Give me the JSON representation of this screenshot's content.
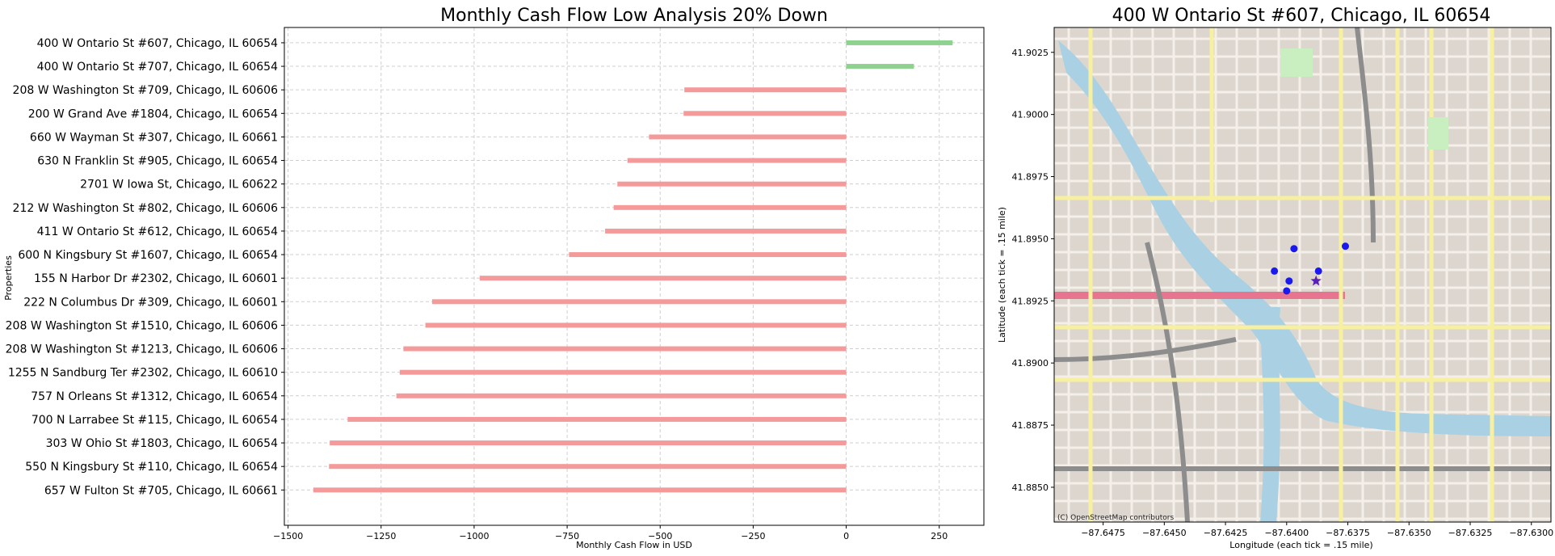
{
  "chart_data": [
    {
      "type": "bar",
      "orientation": "horizontal",
      "title": "Monthly Cash Flow Low Analysis 20% Down",
      "xlabel": "Monthly Cash Flow in USD",
      "ylabel": "Properties",
      "xlim": [
        -1510,
        370
      ],
      "xticks": [
        -1500,
        -1250,
        -1000,
        -750,
        -500,
        -250,
        0,
        250
      ],
      "xtick_labels": [
        "−1500",
        "−1250",
        "−1000",
        "−750",
        "−500",
        "−250",
        "0",
        "250"
      ],
      "grid": true,
      "colors": {
        "positive": "#8fd18f",
        "negative": "#f59a9a"
      },
      "categories": [
        "400 W Ontario St #607, Chicago, IL 60654",
        "400 W Ontario St #707, Chicago, IL 60654",
        "208 W Washington St #709, Chicago, IL 60606",
        "200 W Grand Ave #1804, Chicago, IL 60654",
        "660 W Wayman St #307, Chicago, IL 60661",
        "630 N Franklin St #905, Chicago, IL 60654",
        "2701 W Iowa St, Chicago, IL 60622",
        "212 W Washington St #802, Chicago, IL 60606",
        "411 W Ontario St #612, Chicago, IL 60654",
        "600 N Kingsbury St #1607, Chicago, IL 60654",
        "155 N Harbor Dr #2302, Chicago, IL 60601",
        "222 N Columbus Dr #309, Chicago, IL 60601",
        "208 W Washington St #1510, Chicago, IL 60606",
        "208 W Washington St #1213, Chicago, IL 60606",
        "1255 N Sandburg Ter #2302, Chicago, IL 60610",
        "757 N Orleans St #1312, Chicago, IL 60654",
        "700 N Larrabee St #115, Chicago, IL 60654",
        "303 W Ohio St #1803, Chicago, IL 60654",
        "550 N Kingsbury St #110, Chicago, IL 60654",
        "657 W Fulton St #705, Chicago, IL 60661"
      ],
      "values": [
        286,
        182,
        -435,
        -437,
        -530,
        -588,
        -615,
        -625,
        -648,
        -745,
        -985,
        -1113,
        -1131,
        -1190,
        -1200,
        -1209,
        -1340,
        -1388,
        -1390,
        -1432
      ]
    },
    {
      "type": "scatter",
      "title": "400 W Ontario St #607, Chicago, IL 60654",
      "xlabel": "Longitude (each tick = .15 mile)",
      "ylabel": "Latitude (each tick = .15 mile)",
      "xlim": [
        -87.6495,
        -87.6292
      ],
      "ylim": [
        41.8836,
        41.9035
      ],
      "xticks": [
        -87.6475,
        -87.645,
        -87.6425,
        -87.64,
        -87.6375,
        -87.635,
        -87.6325,
        -87.63
      ],
      "xtick_labels": [
        "−87.6475",
        "−87.6450",
        "−87.6425",
        "−87.6400",
        "−87.6375",
        "−87.6350",
        "−87.6325",
        "−87.6300"
      ],
      "yticks": [
        41.885,
        41.8875,
        41.89,
        41.8925,
        41.895,
        41.8975,
        41.9,
        41.9025
      ],
      "ytick_labels": [
        "41.8850",
        "41.8875",
        "41.8900",
        "41.8925",
        "41.8950",
        "41.8975",
        "41.9000",
        "41.9025"
      ],
      "attribution": "(C) OpenStreetMap contributors",
      "highlight": {
        "x": -87.6388,
        "y": 41.8933,
        "marker": "star"
      },
      "points": [
        {
          "x": -87.6397,
          "y": 41.8946
        },
        {
          "x": -87.6376,
          "y": 41.8947
        },
        {
          "x": -87.6405,
          "y": 41.8937
        },
        {
          "x": -87.6387,
          "y": 41.8937
        },
        {
          "x": -87.6399,
          "y": 41.8933
        },
        {
          "x": -87.64,
          "y": 41.8929
        }
      ],
      "marker_color": "#1a1aee"
    }
  ]
}
